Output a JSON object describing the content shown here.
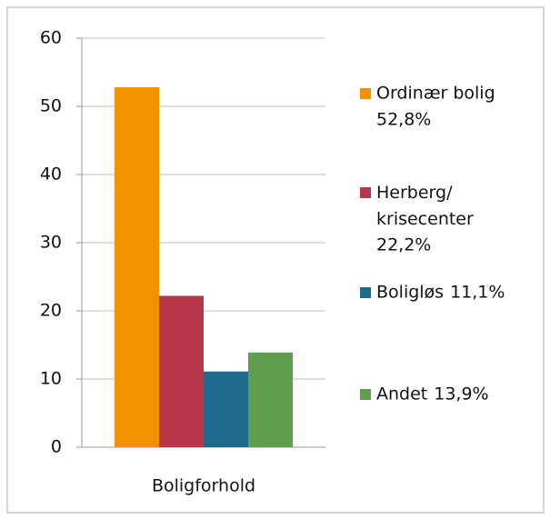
{
  "chart_data": {
    "type": "bar",
    "categories": [
      "Boligforhold"
    ],
    "series": [
      {
        "name": "Ordinær bolig",
        "color": "#f39200",
        "values": [
          52.8
        ],
        "value_labels": [
          "52,8%"
        ]
      },
      {
        "name": "Herberg/krisecenter",
        "color": "#b8364a",
        "values": [
          22.2
        ],
        "value_labels": [
          "22,2%"
        ]
      },
      {
        "name": "Boligløs",
        "color": "#1f6b8f",
        "values": [
          11.1
        ],
        "value_labels": [
          "11,1%"
        ]
      },
      {
        "name": "Andet",
        "color": "#5f9e4f",
        "values": [
          13.9
        ],
        "value_labels": [
          "13,9%"
        ]
      }
    ],
    "ylim": [
      0,
      60
    ],
    "yticks": [
      0,
      10,
      20,
      30,
      40,
      50,
      60
    ],
    "grid": true,
    "legend": "right"
  }
}
